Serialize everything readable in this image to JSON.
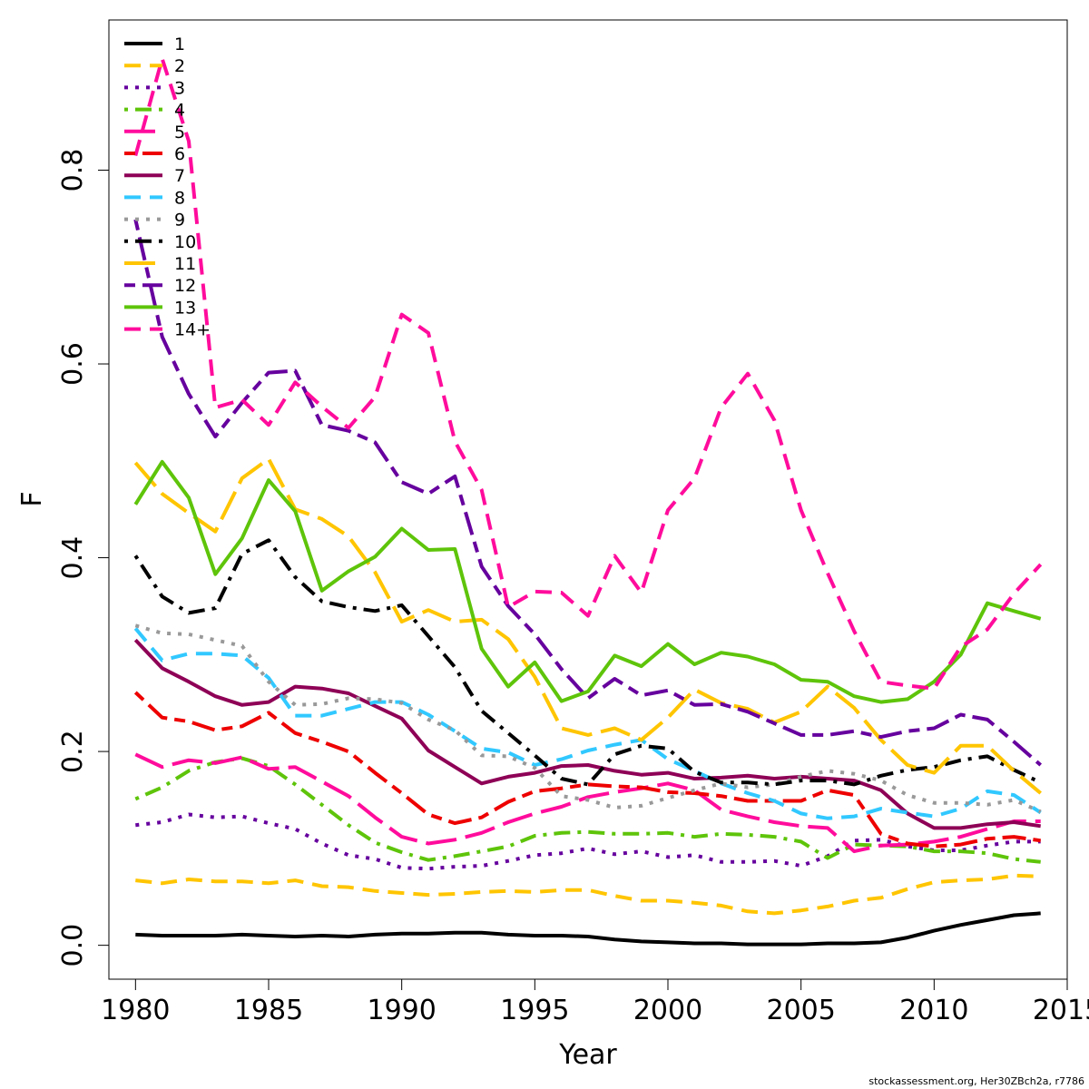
{
  "chart_data": {
    "type": "line",
    "title": "",
    "xlabel": "Year",
    "ylabel": "F",
    "xlim": [
      1979,
      2015
    ],
    "ylim": [
      -0.035,
      0.955
    ],
    "x_ticks": [
      1980,
      1985,
      1990,
      1995,
      2000,
      2005,
      2010,
      2015
    ],
    "y_ticks": [
      0.0,
      0.2,
      0.4,
      0.6,
      0.8
    ],
    "y_tick_labels": [
      "0.0",
      "0.2",
      "0.4",
      "0.6",
      "0.8"
    ],
    "grid": false,
    "legend_position": "top-left",
    "x": [
      1980,
      1981,
      1982,
      1983,
      1984,
      1985,
      1986,
      1987,
      1988,
      1989,
      1990,
      1991,
      1992,
      1993,
      1994,
      1995,
      1996,
      1997,
      1998,
      1999,
      2000,
      2001,
      2002,
      2003,
      2004,
      2005,
      2006,
      2007,
      2008,
      2009,
      2010,
      2011,
      2012,
      2013,
      2014
    ],
    "series": [
      {
        "name": "1",
        "color": "#000000",
        "dash": "solid",
        "values": [
          0.011,
          0.01,
          0.01,
          0.01,
          0.011,
          0.01,
          0.009,
          0.01,
          0.009,
          0.011,
          0.012,
          0.012,
          0.013,
          0.013,
          0.011,
          0.01,
          0.01,
          0.009,
          0.006,
          0.004,
          0.003,
          0.002,
          0.002,
          0.001,
          0.001,
          0.001,
          0.002,
          0.002,
          0.003,
          0.008,
          0.015,
          0.021,
          0.026,
          0.031,
          0.033
        ]
      },
      {
        "name": "2",
        "color": "#FFC500",
        "dash": "dashed",
        "values": [
          0.067,
          0.064,
          0.068,
          0.066,
          0.066,
          0.064,
          0.067,
          0.061,
          0.06,
          0.056,
          0.054,
          0.052,
          0.053,
          0.055,
          0.056,
          0.055,
          0.057,
          0.057,
          0.051,
          0.046,
          0.046,
          0.044,
          0.041,
          0.035,
          0.033,
          0.036,
          0.04,
          0.046,
          0.049,
          0.058,
          0.065,
          0.067,
          0.068,
          0.072,
          0.071
        ]
      },
      {
        "name": "3",
        "color": "#66009E",
        "dash": "dotted",
        "values": [
          0.124,
          0.127,
          0.135,
          0.132,
          0.133,
          0.126,
          0.12,
          0.105,
          0.093,
          0.089,
          0.08,
          0.079,
          0.081,
          0.082,
          0.087,
          0.093,
          0.095,
          0.1,
          0.094,
          0.097,
          0.091,
          0.093,
          0.086,
          0.086,
          0.087,
          0.082,
          0.092,
          0.108,
          0.109,
          0.102,
          0.098,
          0.098,
          0.103,
          0.107,
          0.107
        ]
      },
      {
        "name": "4",
        "color": "#5EC40A",
        "dash": "dotdash",
        "values": [
          0.151,
          0.163,
          0.18,
          0.189,
          0.193,
          0.185,
          0.166,
          0.145,
          0.124,
          0.106,
          0.096,
          0.088,
          0.092,
          0.097,
          0.102,
          0.113,
          0.116,
          0.117,
          0.115,
          0.115,
          0.116,
          0.112,
          0.115,
          0.114,
          0.112,
          0.107,
          0.09,
          0.104,
          0.103,
          0.102,
          0.097,
          0.097,
          0.095,
          0.089,
          0.086
        ]
      },
      {
        "name": "5",
        "color": "#FF0C9C",
        "dash": "longdash",
        "values": [
          0.197,
          0.184,
          0.191,
          0.188,
          0.194,
          0.182,
          0.184,
          0.169,
          0.154,
          0.132,
          0.112,
          0.105,
          0.109,
          0.116,
          0.127,
          0.136,
          0.143,
          0.153,
          0.158,
          0.162,
          0.167,
          0.16,
          0.14,
          0.133,
          0.127,
          0.123,
          0.121,
          0.097,
          0.103,
          0.104,
          0.107,
          0.112,
          0.12,
          0.128,
          0.128
        ]
      },
      {
        "name": "6",
        "color": "#EE0000",
        "dash": "twodash",
        "values": [
          0.261,
          0.235,
          0.231,
          0.222,
          0.226,
          0.24,
          0.219,
          0.21,
          0.2,
          0.178,
          0.157,
          0.135,
          0.126,
          0.132,
          0.148,
          0.159,
          0.162,
          0.166,
          0.164,
          0.163,
          0.158,
          0.157,
          0.154,
          0.149,
          0.149,
          0.149,
          0.16,
          0.155,
          0.115,
          0.105,
          0.102,
          0.104,
          0.11,
          0.112,
          0.108
        ]
      },
      {
        "name": "7",
        "color": "#8E0056",
        "dash": "solid",
        "values": [
          0.315,
          0.286,
          0.272,
          0.257,
          0.248,
          0.251,
          0.267,
          0.265,
          0.26,
          0.247,
          0.234,
          0.201,
          0.184,
          0.167,
          0.174,
          0.178,
          0.185,
          0.186,
          0.18,
          0.176,
          0.178,
          0.172,
          0.173,
          0.175,
          0.172,
          0.174,
          0.172,
          0.17,
          0.16,
          0.136,
          0.121,
          0.121,
          0.125,
          0.127,
          0.123
        ]
      },
      {
        "name": "8",
        "color": "#31C8FF",
        "dash": "dashed",
        "values": [
          0.327,
          0.294,
          0.301,
          0.301,
          0.299,
          0.276,
          0.237,
          0.237,
          0.244,
          0.251,
          0.251,
          0.238,
          0.221,
          0.203,
          0.199,
          0.186,
          0.192,
          0.201,
          0.207,
          0.212,
          0.192,
          0.18,
          0.167,
          0.157,
          0.149,
          0.136,
          0.131,
          0.133,
          0.141,
          0.137,
          0.133,
          0.141,
          0.159,
          0.155,
          0.137
        ]
      },
      {
        "name": "9",
        "color": "#999999",
        "dash": "dotted",
        "values": [
          0.33,
          0.322,
          0.321,
          0.315,
          0.309,
          0.272,
          0.248,
          0.249,
          0.255,
          0.254,
          0.25,
          0.233,
          0.222,
          0.196,
          0.195,
          0.183,
          0.154,
          0.15,
          0.142,
          0.144,
          0.152,
          0.16,
          0.167,
          0.163,
          0.166,
          0.174,
          0.18,
          0.177,
          0.17,
          0.155,
          0.147,
          0.147,
          0.145,
          0.15,
          0.138
        ]
      },
      {
        "name": "10",
        "color": "#000000",
        "dash": "dotdash",
        "values": [
          0.402,
          0.36,
          0.343,
          0.348,
          0.404,
          0.418,
          0.38,
          0.355,
          0.349,
          0.345,
          0.351,
          0.319,
          0.287,
          0.242,
          0.219,
          0.196,
          0.172,
          0.166,
          0.197,
          0.206,
          0.203,
          0.179,
          0.168,
          0.168,
          0.166,
          0.17,
          0.17,
          0.166,
          0.175,
          0.181,
          0.184,
          0.191,
          0.195,
          0.181,
          0.168
        ]
      },
      {
        "name": "11",
        "color": "#FFC500",
        "dash": "longdash",
        "values": [
          0.498,
          0.466,
          0.446,
          0.427,
          0.482,
          0.502,
          0.45,
          0.44,
          0.422,
          0.385,
          0.334,
          0.346,
          0.334,
          0.336,
          0.316,
          0.277,
          0.224,
          0.217,
          0.224,
          0.212,
          0.235,
          0.264,
          0.25,
          0.244,
          0.23,
          0.241,
          0.267,
          0.245,
          0.212,
          0.186,
          0.178,
          0.206,
          0.206,
          0.18,
          0.157
        ]
      },
      {
        "name": "12",
        "color": "#66009E",
        "dash": "twodash",
        "values": [
          0.749,
          0.628,
          0.569,
          0.525,
          0.56,
          0.591,
          0.593,
          0.537,
          0.531,
          0.519,
          0.478,
          0.466,
          0.484,
          0.391,
          0.35,
          0.321,
          0.285,
          0.255,
          0.275,
          0.258,
          0.263,
          0.248,
          0.249,
          0.241,
          0.229,
          0.217,
          0.217,
          0.221,
          0.215,
          0.221,
          0.224,
          0.238,
          0.233,
          0.21,
          0.186
        ]
      },
      {
        "name": "13",
        "color": "#5EC40A",
        "dash": "solid",
        "values": [
          0.455,
          0.499,
          0.462,
          0.383,
          0.42,
          0.48,
          0.448,
          0.366,
          0.386,
          0.401,
          0.43,
          0.408,
          0.409,
          0.306,
          0.267,
          0.292,
          0.252,
          0.262,
          0.299,
          0.288,
          0.311,
          0.29,
          0.302,
          0.298,
          0.29,
          0.274,
          0.272,
          0.257,
          0.251,
          0.254,
          0.272,
          0.3,
          0.353,
          0.345,
          0.337
        ]
      },
      {
        "name": "14+",
        "color": "#FF0C9C",
        "dash": "dashed",
        "values": [
          0.815,
          0.915,
          0.83,
          0.555,
          0.563,
          0.537,
          0.581,
          0.556,
          0.534,
          0.566,
          0.651,
          0.632,
          0.52,
          0.47,
          0.349,
          0.365,
          0.364,
          0.34,
          0.402,
          0.364,
          0.449,
          0.482,
          0.555,
          0.59,
          0.542,
          0.449,
          0.384,
          0.324,
          0.272,
          0.268,
          0.265,
          0.308,
          0.326,
          0.363,
          0.393
        ]
      }
    ],
    "credit": "stockassessment.org, Her30ZBch2a, r7786"
  }
}
